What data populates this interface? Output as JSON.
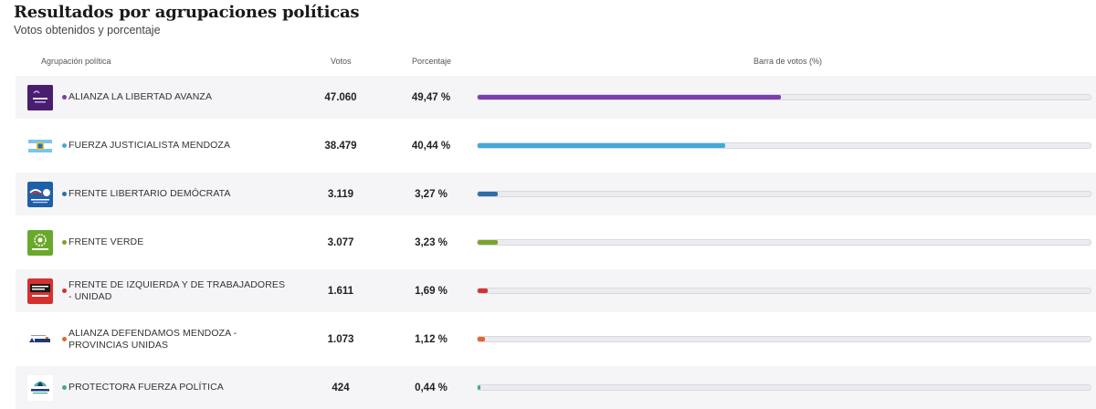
{
  "header": {
    "title": "Resultados por agrupaciones políticas",
    "subtitle": "Votos obtenidos y porcentaje"
  },
  "columns": {
    "party": "Agrupación política",
    "votes": "Votos",
    "percentage": "Porcentaje",
    "bar": "Barra de votos (%)"
  },
  "parties": [
    {
      "name": "ALIANZA LA LIBERTAD AVANZA",
      "votes": "47.060",
      "percentage": "49,47 %",
      "pct_value": 49.47,
      "color": "#7a3fb0",
      "logo_icon": "libertad-avanza-logo-icon"
    },
    {
      "name": "FUERZA JUSTICIALISTA MENDOZA",
      "votes": "38.479",
      "percentage": "40,44 %",
      "pct_value": 40.44,
      "color": "#3fa9d9",
      "logo_icon": "mendoza-flag-logo-icon"
    },
    {
      "name": "FRENTE LIBERTARIO DEMÓCRATA",
      "votes": "3.119",
      "percentage": "3,27 %",
      "pct_value": 3.27,
      "color": "#2d6fa8",
      "logo_icon": "frente-libertario-logo-icon"
    },
    {
      "name": "FRENTE VERDE",
      "votes": "3.077",
      "percentage": "3,23 %",
      "pct_value": 3.23,
      "color": "#7aa32a",
      "logo_icon": "frente-verde-logo-icon"
    },
    {
      "name": "FRENTE DE IZQUIERDA Y DE TRABAJADORES - UNIDAD",
      "votes": "1.611",
      "percentage": "1,69 %",
      "pct_value": 1.69,
      "color": "#d6312f",
      "logo_icon": "fit-unidad-logo-icon"
    },
    {
      "name": "ALIANZA DEFENDAMOS MENDOZA - PROVINCIAS UNIDAS",
      "votes": "1.073",
      "percentage": "1,12 %",
      "pct_value": 1.12,
      "color": "#e8642a",
      "logo_icon": "provincias-unidas-logo-icon"
    },
    {
      "name": "PROTECTORA FUERZA POLÍTICA",
      "votes": "424",
      "percentage": "0,44 %",
      "pct_value": 0.44,
      "color": "#3aaa9a",
      "logo_icon": "protectora-logo-icon"
    }
  ]
}
